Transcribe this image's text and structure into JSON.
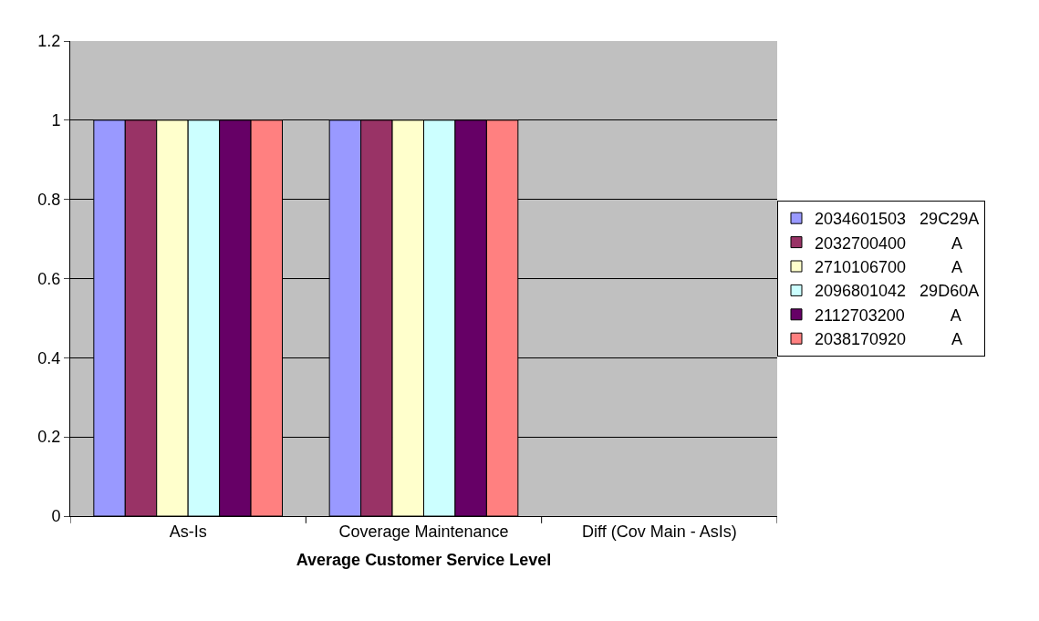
{
  "chart_data": {
    "type": "bar",
    "xlabel": "Average Customer Service Level",
    "categories": [
      "As-Is",
      "Coverage Maintenance",
      "Diff (Cov Main - AsIs)"
    ],
    "series": [
      {
        "name": "2034601503   29C29A",
        "color": "#9999ff",
        "values": [
          1,
          1,
          null
        ]
      },
      {
        "name": "2032700400          A",
        "color": "#993366",
        "values": [
          1,
          1,
          null
        ]
      },
      {
        "name": "2710106700          A",
        "color": "#ffffcc",
        "values": [
          1,
          1,
          null
        ]
      },
      {
        "name": "2096801042   29D60A",
        "color": "#ccffff",
        "values": [
          1,
          1,
          null
        ]
      },
      {
        "name": "2112703200          A",
        "color": "#660066",
        "values": [
          1,
          1,
          null
        ]
      },
      {
        "name": "2038170920          A",
        "color": "#ff8080",
        "values": [
          1,
          1,
          null
        ]
      }
    ],
    "ylim": [
      0,
      1.2
    ],
    "yticks": [
      0,
      0.2,
      0.4,
      0.6,
      0.8,
      1,
      1.2
    ],
    "grid": "y",
    "legend": "right"
  }
}
